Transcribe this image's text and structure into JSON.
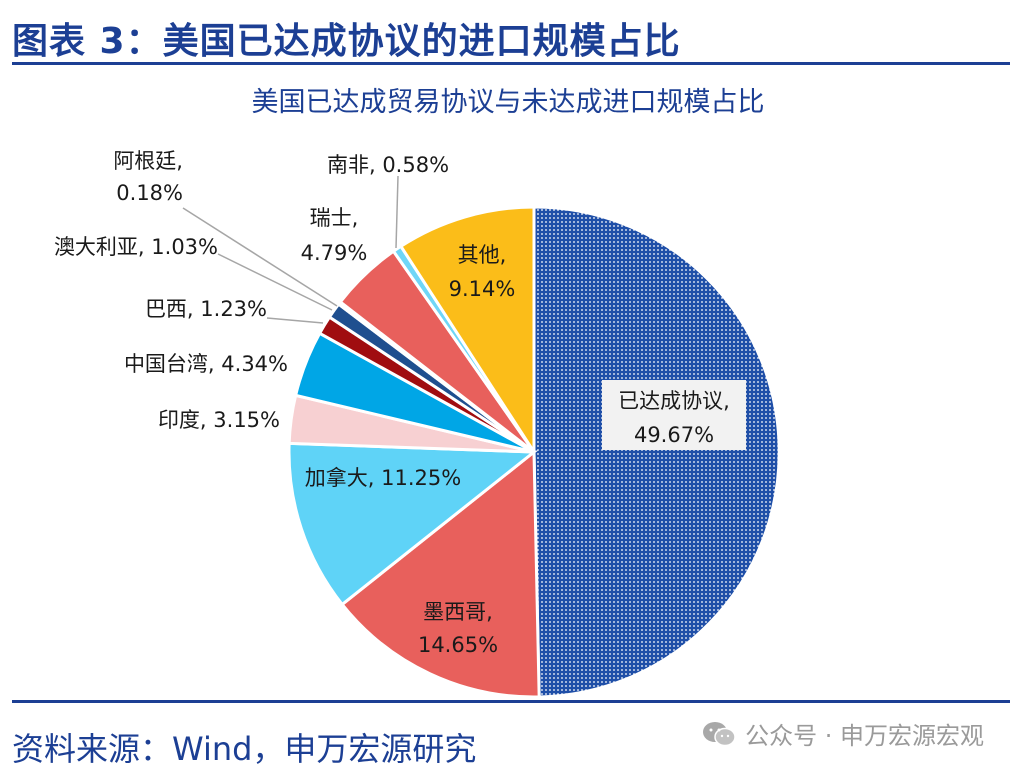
{
  "figure": {
    "title": "图表 3：美国已达成协议的进口规模占比",
    "source": "资料来源：Wind，申万宏源研究",
    "watermark": "公众号 · 申万宏源宏观",
    "watermark_icon": "wechat-icon"
  },
  "chart_data": {
    "type": "pie",
    "title": "美国已达成贸易协议与未达成进口规模占比",
    "unit": "%",
    "start_angle_deg": 0,
    "direction": "clockwise",
    "slices": [
      {
        "label": "已达成协议",
        "value": 49.67,
        "display": "49.67%",
        "color": "#1f4fa8",
        "pattern": "dots"
      },
      {
        "label": "墨西哥",
        "value": 14.65,
        "display": "14.65%",
        "color": "#e8605c"
      },
      {
        "label": "加拿大",
        "value": 11.25,
        "display": "11.25%",
        "color": "#5fd3f7"
      },
      {
        "label": "印度",
        "value": 3.15,
        "display": "3.15%",
        "color": "#f7d0d2"
      },
      {
        "label": "中国台湾",
        "value": 4.34,
        "display": "4.34%",
        "color": "#00a6e6"
      },
      {
        "label": "巴西",
        "value": 1.23,
        "display": "1.23%",
        "color": "#a00d10"
      },
      {
        "label": "澳大利亚",
        "value": 1.03,
        "display": "1.03%",
        "color": "#1f4f8f"
      },
      {
        "label": "阿根廷",
        "value": 0.18,
        "display": "0.18%",
        "color": "#a9a9a9"
      },
      {
        "label": "瑞士",
        "value": 4.79,
        "display": "4.79%",
        "color": "#e8605c"
      },
      {
        "label": "南非",
        "value": 0.58,
        "display": "0.58%",
        "color": "#6fd6f7"
      },
      {
        "label": "其他",
        "value": 9.14,
        "display": "9.14%",
        "color": "#fbbd19"
      }
    ]
  }
}
